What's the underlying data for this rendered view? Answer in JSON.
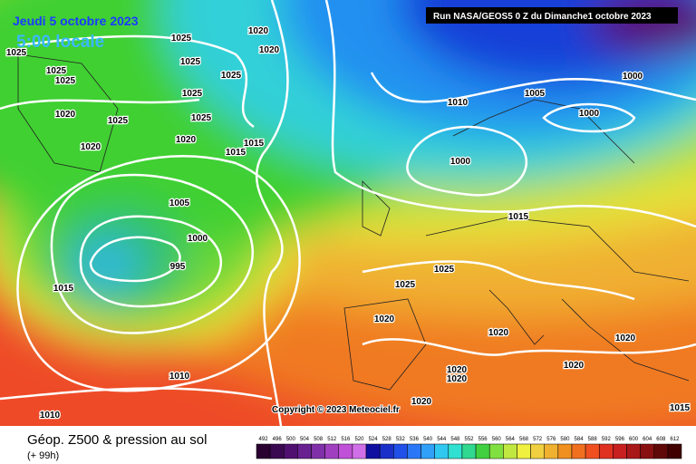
{
  "header": {
    "date": "Jeudi 5 octobre 2023",
    "time": "5:00 locale",
    "run": "Run NASA/GEOS5 0 Z du Dimanche1 octobre 2023"
  },
  "isobar_labels": [
    "1025",
    "1020",
    "1025",
    "1020",
    "1025",
    "1025",
    "1025",
    "1025",
    "1025",
    "1020",
    "1025",
    "1025",
    "1020",
    "1020",
    "1015",
    "1015",
    "1005",
    "1000",
    "995",
    "1015",
    "1010",
    "1010",
    "1005",
    "1010",
    "1000",
    "1000",
    "1000",
    "1015",
    "1025",
    "1025",
    "1020",
    "1020",
    "1020",
    "1020",
    "1020",
    "1020",
    "1020",
    "1015"
  ],
  "copyright": "Copyright © 2023 Meteociel.fr",
  "footer": {
    "title": "Géop. Z500 & pression au sol",
    "lead": "(+ 99h)"
  },
  "legend": {
    "levels": [
      492,
      496,
      500,
      504,
      508,
      512,
      516,
      520,
      524,
      528,
      532,
      536,
      540,
      544,
      548,
      552,
      556,
      560,
      564,
      568,
      572,
      576,
      580,
      584,
      588,
      592,
      596,
      600,
      604,
      608,
      612
    ]
  }
}
